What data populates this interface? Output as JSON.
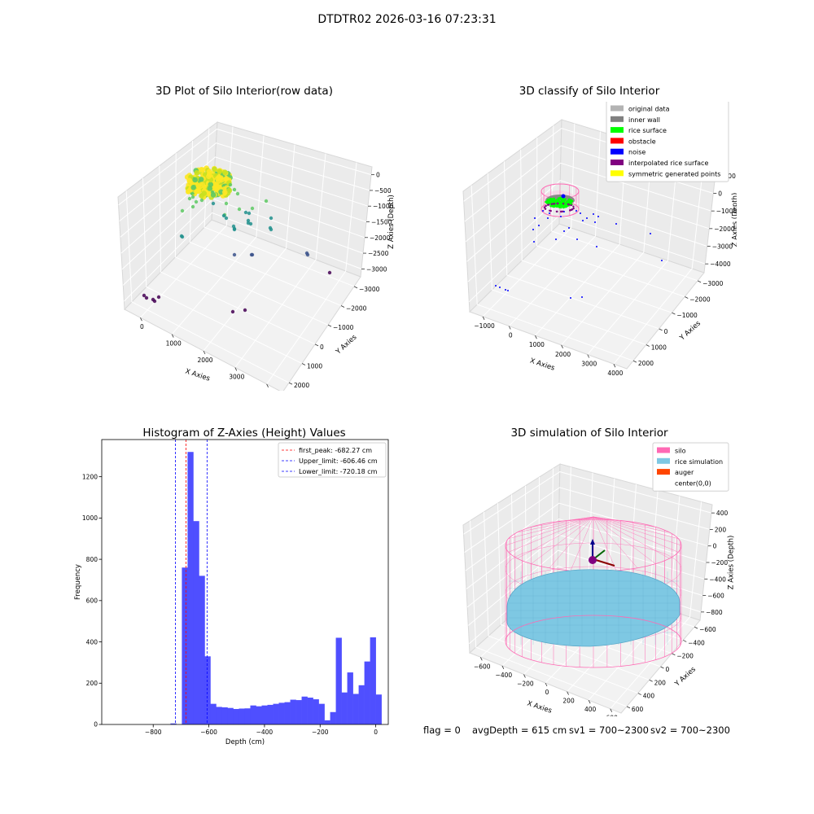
{
  "suptitle": "DTDTR02 2026-03-16 07:23:31",
  "footer": {
    "flag": "flag = 0",
    "avg": "avgDepth = 615 cm",
    "sv1": "sv1 = 700~2300",
    "sv2": "sv2 = 700~2300"
  },
  "chart_data": [
    {
      "type": "scatter",
      "title": "3D Plot of Silo Interior(row data)",
      "xlabel": "X Axies",
      "ylabel": "Y Axies",
      "zlabel": "Z Axies (Depth)",
      "x_ticks": [
        "0",
        "1000",
        "2000",
        "3000",
        "4000"
      ],
      "y_ticks": [
        "2000",
        "1000",
        "0",
        "−1000",
        "−2000",
        "−3000"
      ],
      "z_ticks": [
        "0",
        "−500",
        "−1000",
        "−1500",
        "−2000",
        "−2500",
        "−3000"
      ],
      "colormap": [
        "#440154",
        "#3b528b",
        "#21908d",
        "#5dc963",
        "#fde725"
      ],
      "legend": []
    },
    {
      "type": "scatter",
      "title": "3D classify of Silo Interior",
      "xlabel": "X Axies",
      "ylabel": "Y Axies",
      "zlabel": "Z Axies (Depth)",
      "x_ticks": [
        "−1000",
        "0",
        "1000",
        "2000",
        "3000",
        "4000"
      ],
      "y_ticks": [
        "2000",
        "1000",
        "0",
        "−1000",
        "−2000",
        "−3000"
      ],
      "z_ticks": [
        "1000",
        "0",
        "−1000",
        "−2000",
        "−3000",
        "−4000"
      ],
      "legend": [
        {
          "label": "original data",
          "color": "#b3b3b3"
        },
        {
          "label": "inner wall",
          "color": "#808080"
        },
        {
          "label": "rice surface",
          "color": "#00ff00"
        },
        {
          "label": "obstacle",
          "color": "#ff0000"
        },
        {
          "label": "noise",
          "color": "#0000ff"
        },
        {
          "label": "interpolated rice surface",
          "color": "#800080"
        },
        {
          "label": "symmetric generated points",
          "color": "#ffff00"
        }
      ]
    },
    {
      "type": "bar",
      "title": "Histogram of Z-Axies (Height) Values",
      "xlabel": "Depth (cm)",
      "ylabel": "Frequency",
      "xlim": [
        -985,
        45
      ],
      "ylim": [
        0,
        1380
      ],
      "x_ticks": [
        {
          "value": -800,
          "label": "−800"
        },
        {
          "value": -600,
          "label": "−600"
        },
        {
          "value": -400,
          "label": "−400"
        },
        {
          "value": -200,
          "label": "−200"
        },
        {
          "value": 0,
          "label": "0"
        }
      ],
      "y_ticks": [
        {
          "value": 0,
          "label": "0"
        },
        {
          "value": 200,
          "label": "200"
        },
        {
          "value": 400,
          "label": "400"
        },
        {
          "value": 600,
          "label": "600"
        },
        {
          "value": 800,
          "label": "800"
        },
        {
          "value": 1000,
          "label": "1000"
        },
        {
          "value": 1200,
          "label": "1200"
        }
      ],
      "bar_color": "#4f4fff",
      "bin_width": 20.5,
      "bin_start": -738,
      "values": [
        5,
        0,
        760,
        1320,
        985,
        720,
        330,
        100,
        85,
        83,
        80,
        75,
        77,
        78,
        92,
        88,
        92,
        95,
        100,
        105,
        108,
        120,
        118,
        135,
        130,
        122,
        100,
        20,
        60,
        420,
        155,
        252,
        148,
        190,
        305,
        422,
        145
      ],
      "vlines": [
        {
          "x": -682.27,
          "color": "#ff0000",
          "label": "first_peak: -682.27 cm"
        },
        {
          "x": -606.46,
          "color": "#0000ff",
          "label": "Upper_limit: -606.46 cm"
        },
        {
          "x": -720.18,
          "color": "#0000ff",
          "label": "Lower_limit: -720.18 cm"
        }
      ]
    },
    {
      "type": "3d-surface",
      "title": "3D simulation of Silo Interior",
      "xlabel": "X Axies",
      "ylabel": "Y Axies",
      "zlabel": "Z Axies (Depth)",
      "x_ticks": [
        "−600",
        "−400",
        "−200",
        "0",
        "200",
        "400",
        "600"
      ],
      "y_ticks": [
        "600",
        "400",
        "200",
        "0",
        "−200",
        "−400",
        "−600"
      ],
      "z_ticks": [
        "400",
        "200",
        "0",
        "−200",
        "−400",
        "−600",
        "−800"
      ],
      "legend": [
        {
          "label": "silo",
          "color": "#ff69b4"
        },
        {
          "label": "rice simulation",
          "color": "#7ec8e3"
        },
        {
          "label": "auger",
          "color": "#ff4500"
        },
        {
          "label": "center(0,0)",
          "color": "#ffffff"
        }
      ]
    }
  ]
}
